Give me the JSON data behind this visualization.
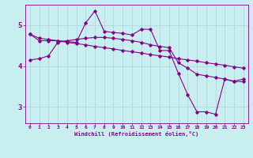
{
  "background_color": "#c8eef0",
  "grid_color": "#b0d8dc",
  "line_color": "#880088",
  "xlabel": "Windchill (Refroidissement éolien,°C)",
  "xlim": [
    -0.5,
    23.5
  ],
  "ylim": [
    2.6,
    5.5
  ],
  "yticks": [
    3,
    4,
    5
  ],
  "xticks": [
    0,
    1,
    2,
    3,
    4,
    5,
    6,
    7,
    8,
    9,
    10,
    11,
    12,
    13,
    14,
    15,
    16,
    17,
    18,
    19,
    20,
    21,
    22,
    23
  ],
  "line1_x": [
    0,
    1,
    2,
    3,
    4,
    5,
    6,
    7,
    8,
    9,
    10,
    11,
    12,
    13,
    14,
    15,
    16,
    17,
    18,
    19,
    20,
    21,
    22,
    23
  ],
  "line1_y": [
    4.78,
    4.68,
    4.65,
    4.62,
    4.58,
    4.55,
    4.52,
    4.48,
    4.45,
    4.42,
    4.38,
    4.35,
    4.32,
    4.28,
    4.25,
    4.22,
    4.18,
    4.15,
    4.12,
    4.08,
    4.05,
    4.02,
    3.98,
    3.95
  ],
  "line2_x": [
    0,
    1,
    2,
    3,
    4,
    5,
    6,
    7,
    8,
    9,
    10,
    11,
    12,
    13,
    14,
    15,
    16,
    17,
    18,
    19,
    20,
    21,
    22,
    23
  ],
  "line2_y": [
    4.78,
    4.62,
    4.62,
    4.62,
    4.6,
    4.58,
    5.05,
    5.35,
    4.85,
    4.82,
    4.8,
    4.76,
    4.9,
    4.9,
    4.38,
    4.38,
    3.82,
    3.3,
    2.88,
    2.88,
    2.82,
    3.68,
    3.63,
    3.68
  ],
  "line3_x": [
    0,
    1,
    2,
    3,
    4,
    5,
    6,
    7,
    8,
    9,
    10,
    11,
    12,
    13,
    14,
    15,
    16,
    17,
    18,
    19,
    20,
    21,
    22,
    23
  ],
  "line3_y": [
    4.15,
    4.18,
    4.25,
    4.58,
    4.62,
    4.65,
    4.68,
    4.7,
    4.7,
    4.68,
    4.65,
    4.62,
    4.58,
    4.52,
    4.48,
    4.45,
    4.08,
    3.95,
    3.8,
    3.76,
    3.72,
    3.68,
    3.62,
    3.62
  ]
}
